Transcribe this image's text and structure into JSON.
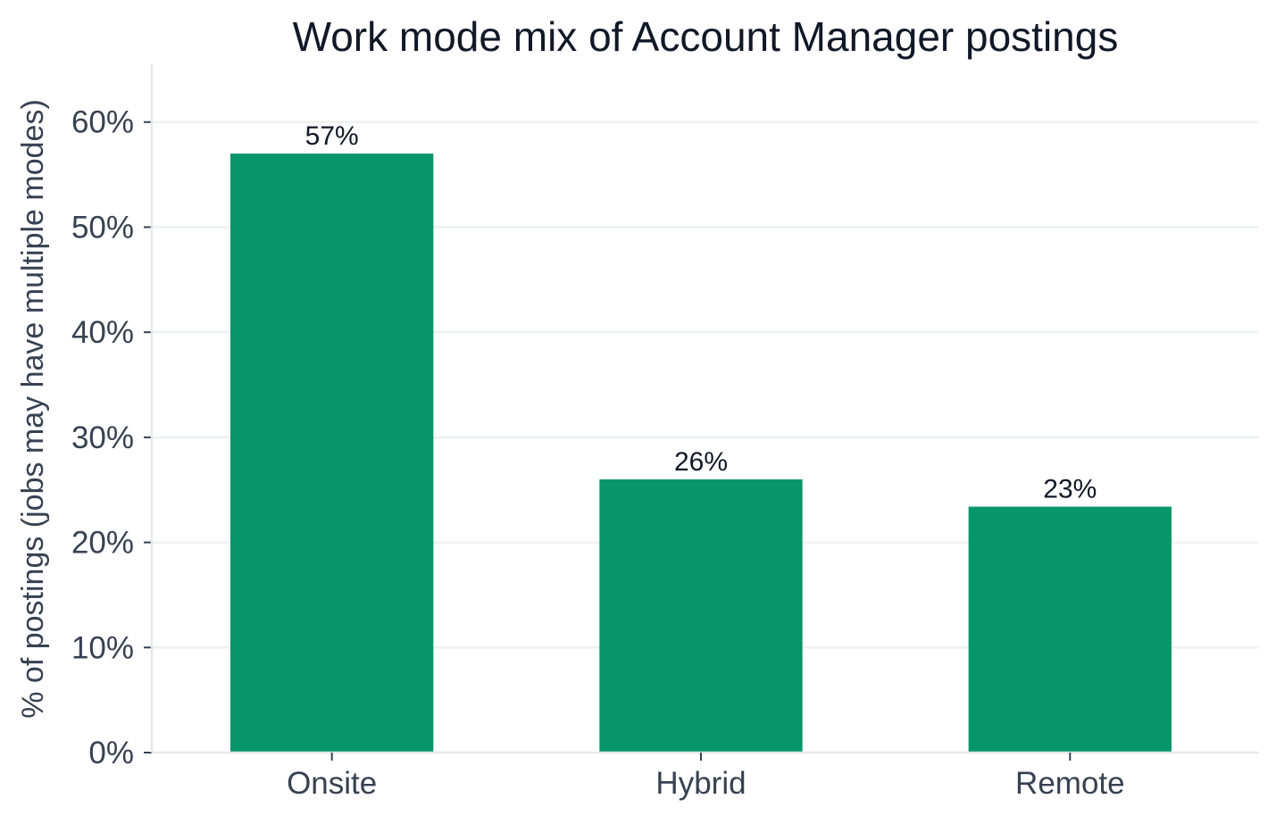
{
  "chart_data": {
    "type": "bar",
    "title": "Work mode mix of Account Manager postings",
    "xlabel": "",
    "ylabel": "% of postings (jobs may have multiple modes)",
    "categories": [
      "Onsite",
      "Hybrid",
      "Remote"
    ],
    "values": [
      57,
      26,
      23.4
    ],
    "data_labels": [
      "57%",
      "26%",
      "23%"
    ],
    "ylim": [
      0,
      65.5
    ],
    "yticks": [
      0,
      10,
      20,
      30,
      40,
      50,
      60
    ],
    "ytick_labels": [
      "0%",
      "10%",
      "20%",
      "30%",
      "40%",
      "50%",
      "60%"
    ],
    "bar_color": "#069669",
    "grid": "horizontal",
    "legend": "none"
  }
}
